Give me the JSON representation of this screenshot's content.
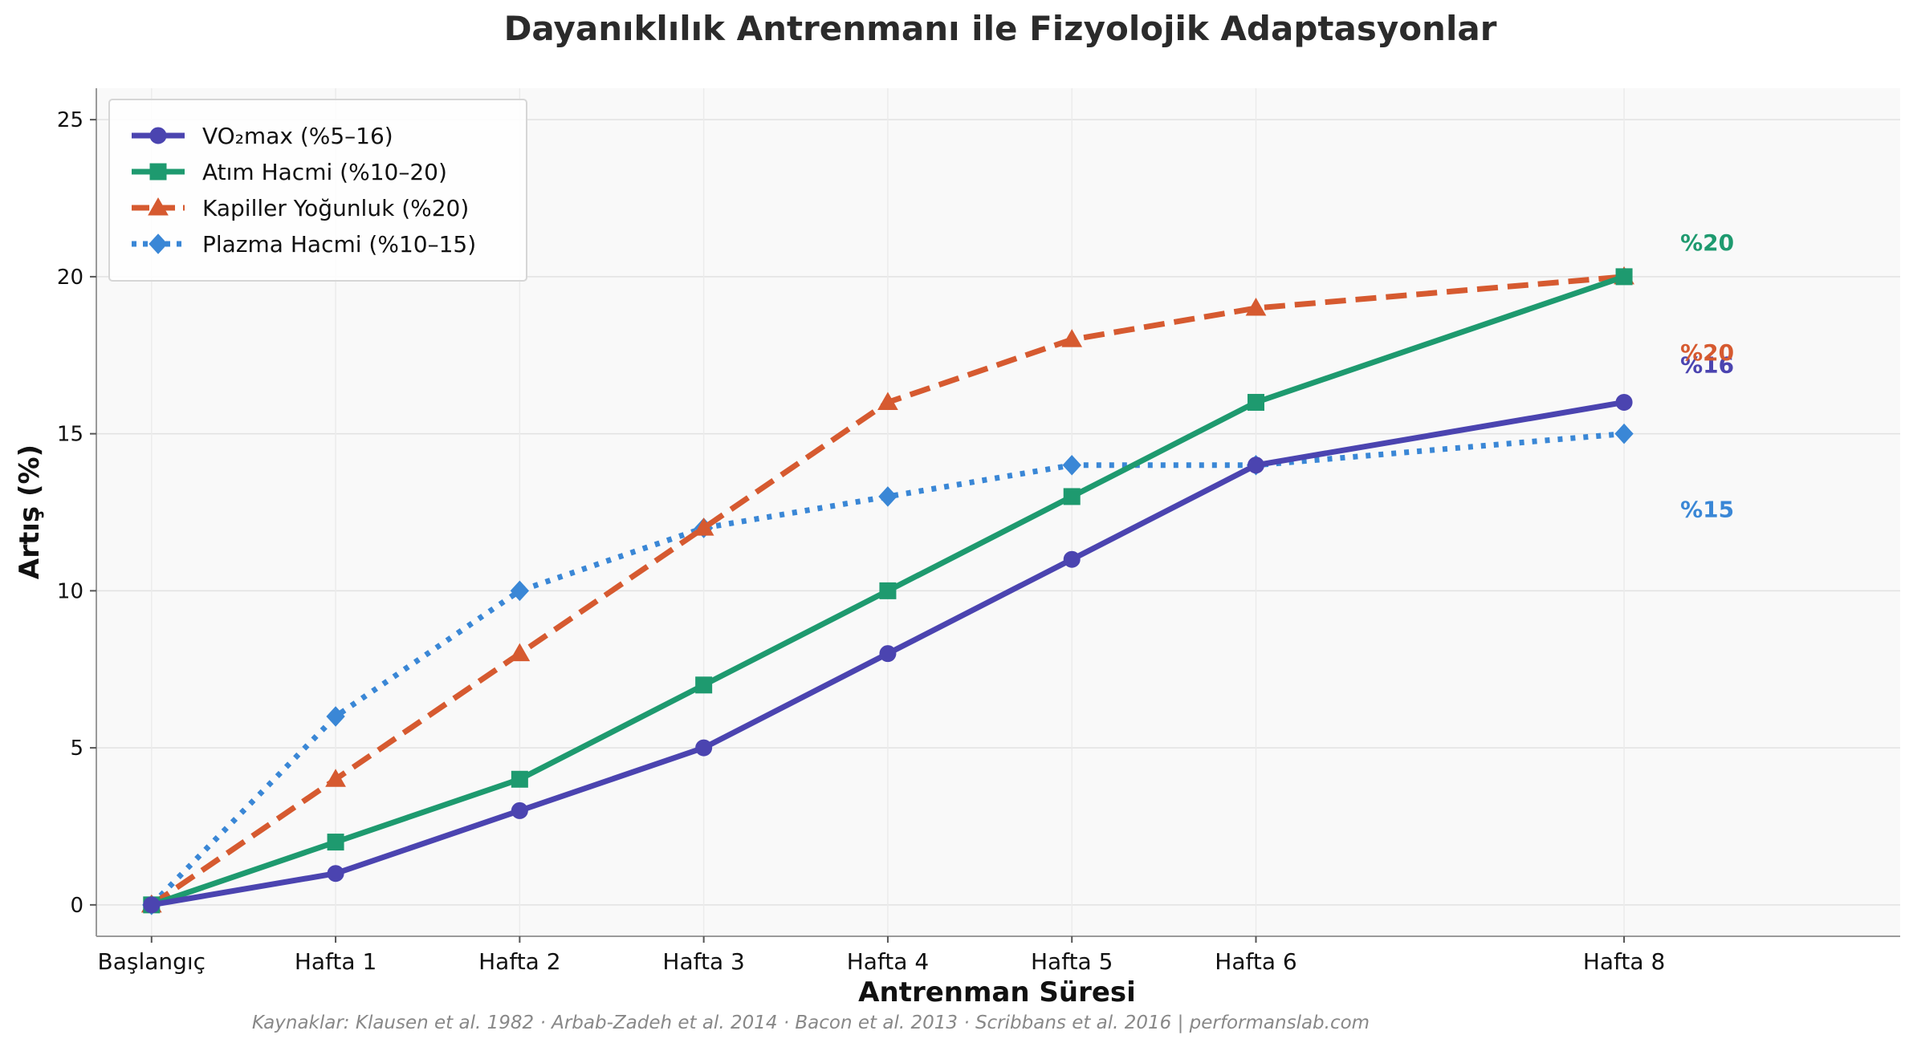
{
  "chart_data": {
    "type": "line",
    "title": "Dayanıklılık Antrenmanı ile Fizyolojik Adaptasyonlar",
    "xlabel": "Antrenman Süresi",
    "ylabel": "Artış (%)",
    "x": [
      0,
      1,
      2,
      3,
      4,
      5,
      6,
      8
    ],
    "x_tick_labels": [
      "Başlangıç",
      "Hafta 1",
      "Hafta 2",
      "Hafta 3",
      "Hafta 4",
      "Hafta 5",
      "Hafta 6",
      "Hafta 8"
    ],
    "xlim": [
      -0.3,
      9.5
    ],
    "ylim": [
      -1,
      26
    ],
    "y_ticks": [
      0,
      5,
      10,
      15,
      20,
      25
    ],
    "grid": true,
    "legend_position": "top-left",
    "series": [
      {
        "name": "VO₂max (%5–16)",
        "color": "#4b44b0",
        "marker": "circle",
        "dash": "solid",
        "values": [
          0,
          1,
          3,
          5,
          8,
          11,
          14,
          16
        ],
        "end_label": "%16"
      },
      {
        "name": "Atım Hacmi (%10–20)",
        "color": "#1e9a6f",
        "marker": "square",
        "dash": "solid",
        "values": [
          0,
          2,
          4,
          7,
          10,
          13,
          16,
          20
        ],
        "end_label": "%20"
      },
      {
        "name": "Kapiller Yoğunluk (%20)",
        "color": "#d65a30",
        "marker": "triangle",
        "dash": "dashed",
        "values": [
          0,
          4,
          8,
          12,
          16,
          18,
          19,
          20
        ],
        "end_label": "%20"
      },
      {
        "name": "Plazma Hacmi (%10–15)",
        "color": "#3a87d6",
        "marker": "diamond",
        "dash": "dotted",
        "values": [
          0,
          6,
          10,
          12,
          13,
          14,
          14,
          15
        ],
        "end_label": "%15"
      }
    ],
    "source_note": "Kaynaklar: Klausen et al. 1982 · Arbab-Zadeh et al. 2014 · Bacon et al. 2013 · Scribbans et al. 2016  |  performanslab.com"
  }
}
